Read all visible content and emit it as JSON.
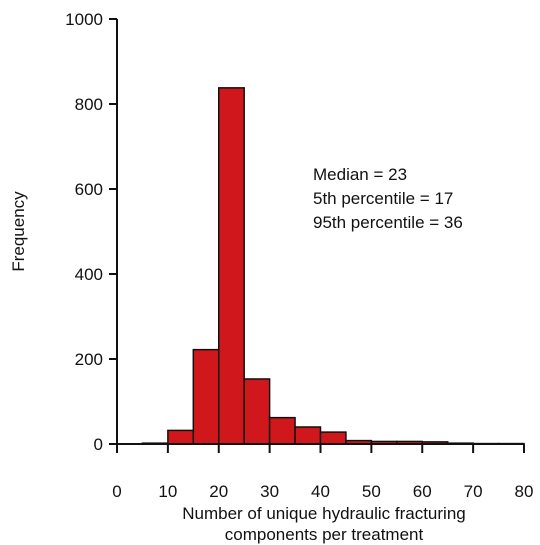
{
  "chart_data": {
    "type": "bar",
    "subtype": "histogram",
    "title": "",
    "xlabel_lines": [
      "Number of unique hydraulic fracturing",
      "components per treatment"
    ],
    "ylabel": "Frequency",
    "xlim": [
      0,
      80
    ],
    "ylim": [
      0,
      1000
    ],
    "xticks": [
      0,
      10,
      20,
      30,
      40,
      50,
      60,
      70,
      80
    ],
    "yticks": [
      0,
      200,
      400,
      600,
      800,
      1000
    ],
    "bin_width": 5,
    "bins": [
      {
        "start": 0,
        "end": 5,
        "value": 0
      },
      {
        "start": 5,
        "end": 10,
        "value": 2
      },
      {
        "start": 10,
        "end": 15,
        "value": 32
      },
      {
        "start": 15,
        "end": 20,
        "value": 222
      },
      {
        "start": 20,
        "end": 25,
        "value": 838
      },
      {
        "start": 25,
        "end": 30,
        "value": 153
      },
      {
        "start": 30,
        "end": 35,
        "value": 62
      },
      {
        "start": 35,
        "end": 40,
        "value": 40
      },
      {
        "start": 40,
        "end": 45,
        "value": 28
      },
      {
        "start": 45,
        "end": 50,
        "value": 8
      },
      {
        "start": 50,
        "end": 55,
        "value": 6
      },
      {
        "start": 55,
        "end": 60,
        "value": 6
      },
      {
        "start": 60,
        "end": 65,
        "value": 5
      },
      {
        "start": 65,
        "end": 70,
        "value": 2
      },
      {
        "start": 70,
        "end": 75,
        "value": 1
      },
      {
        "start": 75,
        "end": 80,
        "value": 1
      }
    ],
    "bar_color": "#d0181c",
    "grid": false,
    "annotations": [
      "Median = 23",
      "5th percentile = 17",
      "95th percentile = 36"
    ]
  }
}
